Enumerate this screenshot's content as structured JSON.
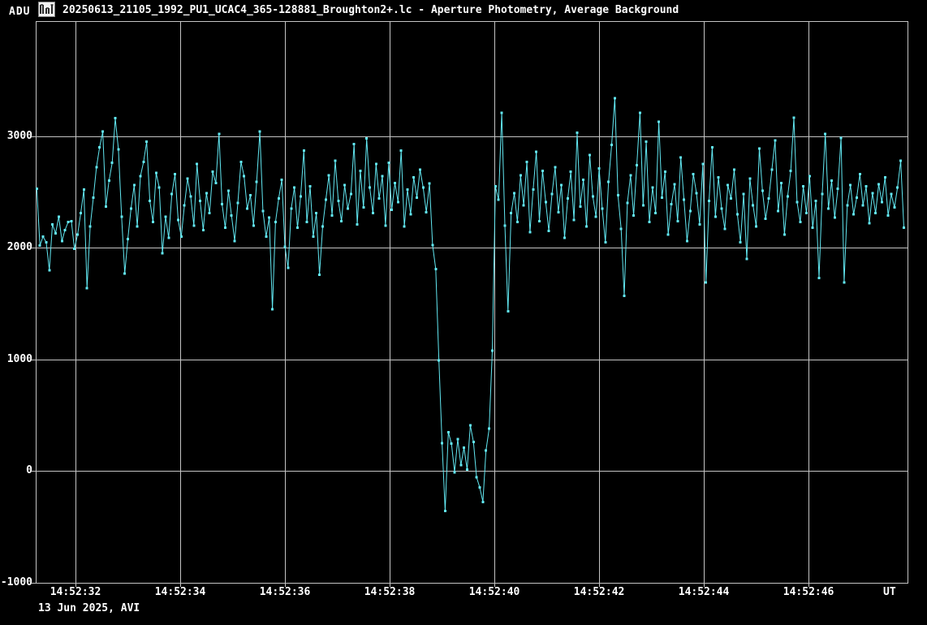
{
  "window": {
    "y_axis_unit": "ADU",
    "title": "20250613_21105_1992_PU1_UCAC4_365-128881_Broughton2+.lc - Aperture Photometry, Average Background",
    "icon": "lightcurve-icon",
    "footer": "13 Jun 2025, AVI",
    "x_axis_unit": "UT"
  },
  "colors": {
    "background": "#000000",
    "curve": "#62E8F2",
    "grid": "#c4c4c4",
    "border": "#c4c4c4",
    "text": "#ffffff"
  },
  "chart_data": {
    "type": "line",
    "title": "20250613_21105_1992_PU1_UCAC4_365-128881_Broughton2+.lc - Aperture Photometry, Average Background",
    "ylabel": "ADU",
    "xlabel": "UT",
    "x_unit": "seconds after 14:52:00 UT on 13 Jun 2025",
    "marker": "square",
    "grid": true,
    "legend": "none",
    "xlim": [
      31.24,
      47.89
    ],
    "ylim": [
      -1000,
      4030
    ],
    "x_ticks": [
      {
        "t": 32,
        "label": "14:52:32"
      },
      {
        "t": 34,
        "label": "14:52:34"
      },
      {
        "t": 36,
        "label": "14:52:36"
      },
      {
        "t": 38,
        "label": "14:52:38"
      },
      {
        "t": 40,
        "label": "14:52:40"
      },
      {
        "t": 42,
        "label": "14:52:42"
      },
      {
        "t": 44,
        "label": "14:52:44"
      },
      {
        "t": 46,
        "label": "14:52:46"
      }
    ],
    "y_ticks": [
      {
        "v": 3000,
        "label": "3000"
      },
      {
        "v": 2000,
        "label": "2000"
      },
      {
        "v": 1000,
        "label": "1000"
      },
      {
        "v": 0,
        "label": "0"
      },
      {
        "v": -1000,
        "label": "-1000"
      }
    ],
    "series": [
      {
        "name": "Aperture Photometry, Average Background",
        "t_start": 31.26,
        "t_step": 0.06,
        "values": [
          2530,
          2020,
          2100,
          2050,
          1800,
          2210,
          2130,
          2280,
          2060,
          2160,
          2230,
          2240,
          1990,
          2120,
          2310,
          2520,
          1640,
          2190,
          2450,
          2720,
          2900,
          3040,
          2370,
          2600,
          2760,
          3160,
          2880,
          2280,
          1770,
          2080,
          2350,
          2560,
          2190,
          2640,
          2770,
          2950,
          2420,
          2230,
          2670,
          2540,
          1950,
          2280,
          2090,
          2480,
          2660,
          2250,
          2100,
          2380,
          2620,
          2460,
          2200,
          2750,
          2420,
          2160,
          2490,
          2310,
          2680,
          2580,
          3020,
          2390,
          2180,
          2510,
          2290,
          2060,
          2400,
          2770,
          2640,
          2350,
          2470,
          2200,
          2590,
          3040,
          2330,
          2100,
          2270,
          1450,
          2230,
          2440,
          2610,
          2010,
          1820,
          2350,
          2540,
          2180,
          2460,
          2870,
          2230,
          2550,
          2100,
          2310,
          1760,
          2190,
          2430,
          2650,
          2290,
          2780,
          2420,
          2240,
          2560,
          2350,
          2480,
          2930,
          2210,
          2690,
          2360,
          2980,
          2540,
          2310,
          2750,
          2440,
          2640,
          2200,
          2760,
          2340,
          2580,
          2410,
          2870,
          2190,
          2520,
          2300,
          2630,
          2450,
          2700,
          2540,
          2320,
          2575,
          2025,
          1810,
          990,
          250,
          -355,
          350,
          245,
          -10,
          285,
          55,
          210,
          15,
          410,
          260,
          -55,
          -145,
          -275,
          185,
          380,
          1080,
          2550,
          2430,
          3210,
          2200,
          1430,
          2310,
          2490,
          2230,
          2650,
          2380,
          2770,
          2140,
          2520,
          2860,
          2240,
          2690,
          2410,
          2150,
          2480,
          2720,
          2320,
          2560,
          2090,
          2440,
          2680,
          2250,
          3030,
          2370,
          2610,
          2190,
          2830,
          2460,
          2280,
          2710,
          2350,
          2050,
          2590,
          2920,
          3340,
          2470,
          2170,
          1570,
          2400,
          2650,
          2290,
          2740,
          3210,
          2380,
          2950,
          2230,
          2540,
          2310,
          3130,
          2450,
          2680,
          2120,
          2390,
          2570,
          2240,
          2810,
          2430,
          2060,
          2330,
          2660,
          2490,
          2210,
          2750,
          1690,
          2420,
          2900,
          2280,
          2630,
          2350,
          2170,
          2560,
          2440,
          2700,
          2300,
          2050,
          2480,
          1900,
          2620,
          2380,
          2190,
          2890,
          2510,
          2260,
          2440,
          2700,
          2960,
          2330,
          2580,
          2120,
          2460,
          2690,
          3165,
          2410,
          2230,
          2550,
          2310,
          2640,
          2180,
          2420,
          1730,
          2480,
          3020,
          2350,
          2600,
          2270,
          2530,
          2985,
          1690,
          2380,
          2560,
          2300,
          2450,
          2660,
          2380,
          2550,
          2220,
          2490,
          2310,
          2570,
          2410,
          2630,
          2290,
          2480,
          2360,
          2540,
          2780,
          2180
        ]
      }
    ]
  }
}
